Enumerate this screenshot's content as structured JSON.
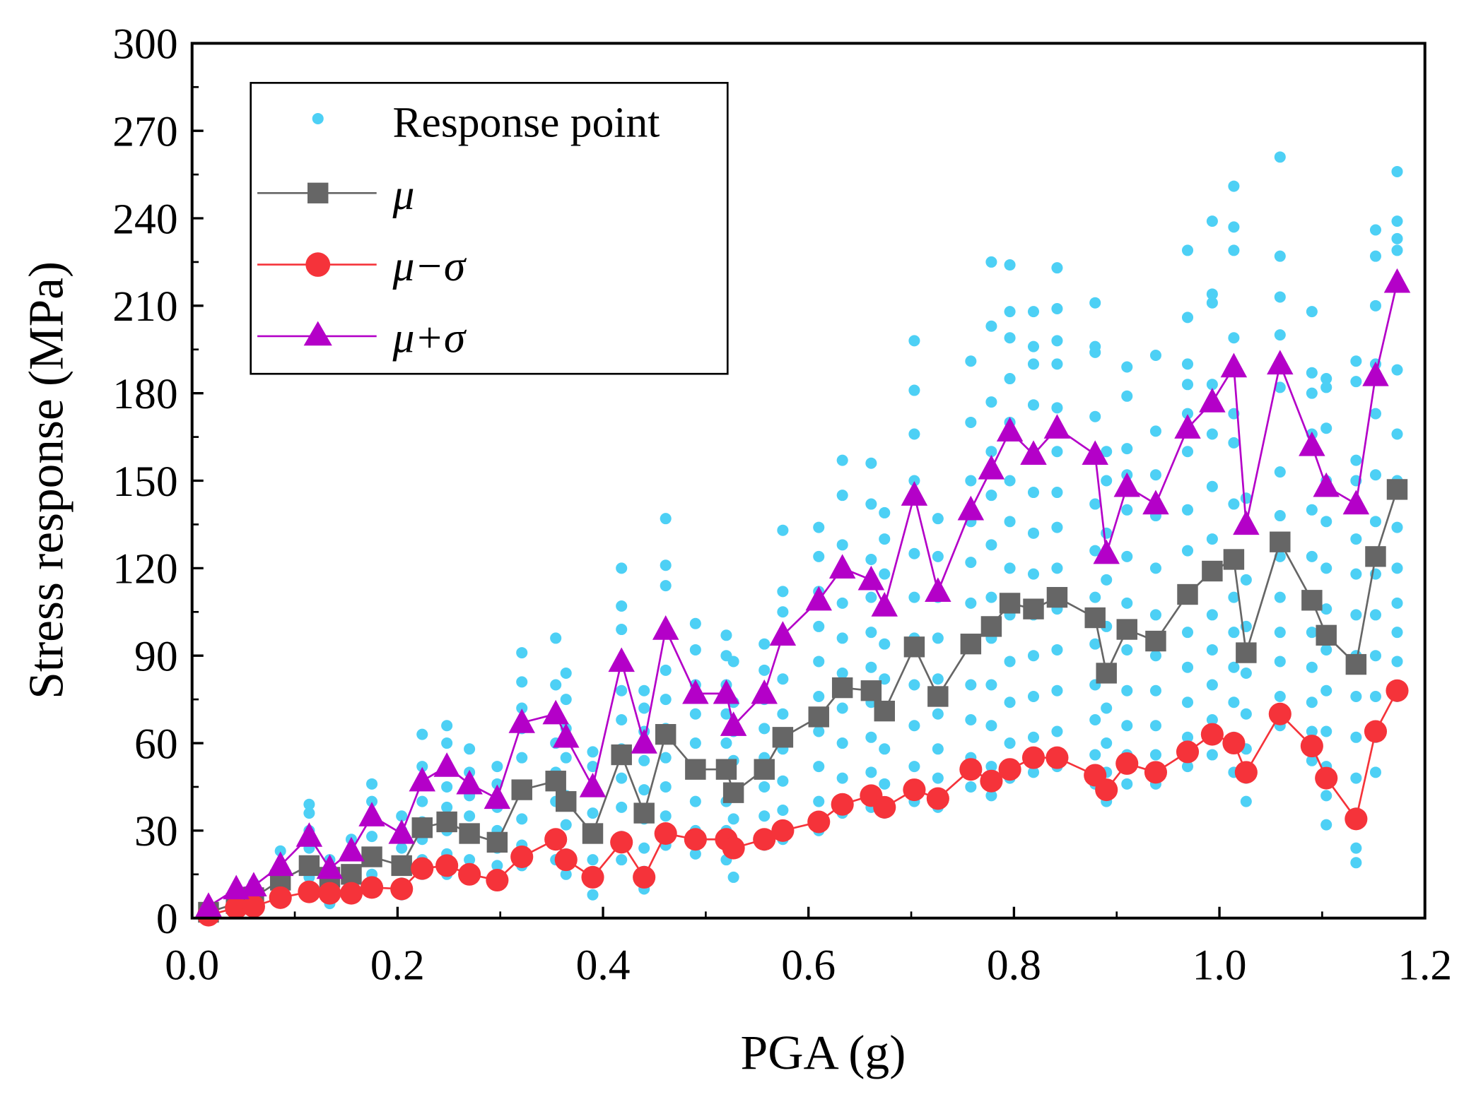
{
  "chart_data": {
    "type": "scatter",
    "title": "",
    "xlabel": "PGA (g)",
    "ylabel": "Stress response (MPa)",
    "xlim": [
      0,
      1.2
    ],
    "ylim": [
      0,
      300
    ],
    "xticks": [
      "0.0",
      "0.2",
      "0.4",
      "0.6",
      "0.8",
      "1.0",
      "1.2"
    ],
    "yticks": [
      "0",
      "30",
      "60",
      "90",
      "120",
      "150",
      "180",
      "210",
      "240",
      "270",
      "300"
    ],
    "grid": false,
    "legend_position": "top-left",
    "legend": [
      "Response point",
      "μ",
      "μ−σ",
      "μ+σ"
    ],
    "colors": {
      "points": "#4dd0f5",
      "mu": "#666666",
      "mu_minus": "#f5333a",
      "mu_plus": "#b400c8"
    },
    "x": [
      0.016,
      0.043,
      0.06,
      0.086,
      0.114,
      0.134,
      0.155,
      0.175,
      0.204,
      0.224,
      0.248,
      0.27,
      0.297,
      0.321,
      0.354,
      0.364,
      0.39,
      0.418,
      0.44,
      0.461,
      0.49,
      0.52,
      0.527,
      0.557,
      0.575,
      0.61,
      0.633,
      0.661,
      0.674,
      0.703,
      0.726,
      0.758,
      0.778,
      0.796,
      0.819,
      0.842,
      0.879,
      0.89,
      0.91,
      0.938,
      0.969,
      0.993,
      1.014,
      1.026,
      1.059,
      1.09,
      1.104,
      1.133,
      1.152,
      1.173
    ],
    "series": [
      {
        "name": "μ",
        "marker": "square",
        "values": [
          2,
          5,
          7,
          13,
          18,
          14,
          15,
          21,
          18,
          31,
          33,
          29,
          26,
          44,
          47,
          40,
          29,
          56,
          36,
          63,
          51,
          51,
          43,
          51,
          62,
          69,
          79,
          78,
          71,
          93,
          76,
          94,
          100,
          108,
          106,
          110,
          103,
          84,
          99,
          95,
          111,
          119,
          123,
          91,
          129,
          109,
          97,
          87,
          124,
          147
        ]
      },
      {
        "name": "μ−σ",
        "marker": "circle",
        "values": [
          1,
          3.5,
          4,
          7,
          9,
          8.5,
          8.5,
          10.5,
          10,
          17,
          18,
          15,
          13,
          21,
          27,
          20,
          14,
          26,
          14,
          29,
          27,
          27,
          24,
          27,
          30,
          33,
          39,
          42,
          38,
          44,
          41,
          51,
          47,
          51,
          55,
          55,
          49,
          44,
          53,
          50,
          57,
          63,
          60,
          50,
          70,
          59,
          48,
          34,
          64,
          78
        ]
      },
      {
        "name": "μ+σ",
        "marker": "triangle",
        "values": [
          4,
          10,
          11,
          18,
          28,
          17,
          23,
          35,
          29,
          47,
          52,
          46,
          41,
          67,
          70,
          62,
          45,
          88,
          60,
          99,
          77,
          77,
          66,
          77,
          97,
          109,
          120,
          116,
          107,
          145,
          112,
          140,
          154,
          167,
          159,
          168,
          159,
          125,
          148,
          142,
          168,
          177,
          189,
          135,
          190,
          162,
          148,
          142,
          186,
          218
        ]
      }
    ],
    "response_points": [
      [
        0.016,
        [
          2,
          4,
          3
        ]
      ],
      [
        0.043,
        [
          3,
          6,
          8,
          10
        ]
      ],
      [
        0.06,
        [
          4,
          7,
          10,
          12
        ]
      ],
      [
        0.086,
        [
          7,
          10,
          14,
          18,
          23
        ]
      ],
      [
        0.114,
        [
          9,
          14,
          18,
          24,
          30,
          36,
          39
        ]
      ],
      [
        0.134,
        [
          5,
          8,
          12,
          16,
          20
        ]
      ],
      [
        0.155,
        [
          8,
          12,
          16,
          22,
          27
        ]
      ],
      [
        0.175,
        [
          10,
          15,
          21,
          28,
          35,
          40,
          46
        ]
      ],
      [
        0.204,
        [
          8,
          12,
          18,
          24,
          30,
          35
        ]
      ],
      [
        0.224,
        [
          15,
          20,
          27,
          33,
          40,
          46,
          52,
          63
        ]
      ],
      [
        0.248,
        [
          15,
          22,
          30,
          38,
          45,
          52,
          60,
          66
        ]
      ],
      [
        0.27,
        [
          14,
          20,
          28,
          35,
          42,
          50,
          58
        ]
      ],
      [
        0.297,
        [
          12,
          18,
          24,
          30,
          38,
          46,
          52
        ]
      ],
      [
        0.321,
        [
          18,
          25,
          34,
          44,
          55,
          65,
          72,
          81,
          91
        ]
      ],
      [
        0.354,
        [
          20,
          28,
          40,
          50,
          60,
          70,
          80,
          96
        ]
      ],
      [
        0.364,
        [
          15,
          22,
          32,
          42,
          55,
          65,
          75,
          84
        ]
      ],
      [
        0.39,
        [
          8,
          14,
          20,
          28,
          36,
          44,
          52,
          57
        ]
      ],
      [
        0.418,
        [
          20,
          28,
          38,
          48,
          58,
          68,
          78,
          88,
          99,
          107,
          120
        ]
      ],
      [
        0.44,
        [
          10,
          16,
          24,
          34,
          44,
          54,
          64,
          72,
          78
        ]
      ],
      [
        0.461,
        [
          25,
          35,
          45,
          55,
          65,
          75,
          85,
          99,
          114,
          121,
          137
        ]
      ],
      [
        0.49,
        [
          22,
          30,
          40,
          50,
          60,
          70,
          80,
          92,
          101
        ]
      ],
      [
        0.52,
        [
          20,
          30,
          40,
          50,
          60,
          70,
          80,
          90,
          97
        ]
      ],
      [
        0.527,
        [
          14,
          24,
          34,
          44,
          54,
          64,
          74,
          88
        ]
      ],
      [
        0.557,
        [
          25,
          35,
          45,
          55,
          65,
          75,
          85,
          94
        ]
      ],
      [
        0.575,
        [
          27,
          37,
          47,
          58,
          70,
          82,
          96,
          105,
          112,
          133
        ]
      ],
      [
        0.61,
        [
          30,
          40,
          52,
          64,
          76,
          88,
          100,
          112,
          124,
          134
        ]
      ],
      [
        0.633,
        [
          36,
          48,
          60,
          72,
          84,
          96,
          108,
          120,
          128,
          145,
          157
        ]
      ],
      [
        0.661,
        [
          38,
          50,
          62,
          74,
          86,
          98,
          110,
          123,
          142,
          156
        ]
      ],
      [
        0.674,
        [
          36,
          46,
          58,
          70,
          82,
          94,
          106,
          118,
          130,
          139
        ]
      ],
      [
        0.703,
        [
          40,
          52,
          66,
          80,
          96,
          110,
          125,
          150,
          166,
          181,
          198
        ]
      ],
      [
        0.726,
        [
          38,
          48,
          58,
          70,
          82,
          96,
          110,
          124,
          137
        ]
      ],
      [
        0.758,
        [
          45,
          55,
          68,
          80,
          94,
          108,
          122,
          136,
          150,
          170,
          191
        ]
      ],
      [
        0.778,
        [
          42,
          52,
          66,
          80,
          96,
          110,
          128,
          145,
          160,
          177,
          203,
          225
        ]
      ],
      [
        0.796,
        [
          48,
          60,
          74,
          88,
          104,
          120,
          136,
          150,
          170,
          185,
          199,
          208,
          224
        ]
      ],
      [
        0.819,
        [
          50,
          62,
          76,
          90,
          104,
          118,
          132,
          146,
          160,
          176,
          190,
          196,
          208
        ]
      ],
      [
        0.842,
        [
          52,
          64,
          78,
          92,
          106,
          120,
          134,
          146,
          160,
          175,
          190,
          198,
          209,
          223
        ]
      ],
      [
        0.879,
        [
          46,
          56,
          68,
          80,
          94,
          110,
          126,
          142,
          158,
          172,
          194,
          196,
          211
        ]
      ],
      [
        0.89,
        [
          40,
          50,
          60,
          72,
          84,
          100,
          116,
          132,
          150,
          160
        ]
      ],
      [
        0.91,
        [
          46,
          56,
          66,
          78,
          92,
          108,
          124,
          140,
          152,
          161,
          179,
          189
        ]
      ],
      [
        0.938,
        [
          46,
          56,
          66,
          78,
          90,
          104,
          120,
          138,
          152,
          167,
          193
        ]
      ],
      [
        0.969,
        [
          52,
          62,
          74,
          86,
          98,
          112,
          126,
          140,
          160,
          173,
          183,
          190,
          206,
          229
        ]
      ],
      [
        0.993,
        [
          56,
          68,
          80,
          92,
          104,
          118,
          130,
          148,
          166,
          183,
          211,
          214,
          239
        ]
      ],
      [
        1.014,
        [
          50,
          62,
          74,
          86,
          98,
          110,
          124,
          142,
          163,
          173,
          199,
          229,
          237,
          251
        ]
      ],
      [
        1.026,
        [
          40,
          48,
          58,
          70,
          84,
          100,
          116,
          134,
          144
        ]
      ],
      [
        1.059,
        [
          66,
          76,
          88,
          98,
          110,
          124,
          138,
          153,
          182,
          200,
          213,
          227,
          261
        ]
      ],
      [
        1.09,
        [
          54,
          64,
          74,
          86,
          98,
          110,
          124,
          140,
          166,
          180,
          187,
          208
        ]
      ],
      [
        1.104,
        [
          32,
          42,
          52,
          64,
          78,
          92,
          106,
          120,
          136,
          150,
          168,
          182,
          185
        ]
      ],
      [
        1.133,
        [
          19,
          24,
          36,
          48,
          62,
          76,
          90,
          104,
          118,
          130,
          150,
          157,
          184,
          191
        ]
      ],
      [
        1.152,
        [
          50,
          62,
          76,
          90,
          104,
          118,
          136,
          152,
          173,
          190,
          210,
          227,
          236
        ]
      ],
      [
        1.173,
        [
          76,
          88,
          98,
          108,
          120,
          134,
          150,
          166,
          188,
          229,
          233,
          239,
          256
        ]
      ]
    ]
  }
}
